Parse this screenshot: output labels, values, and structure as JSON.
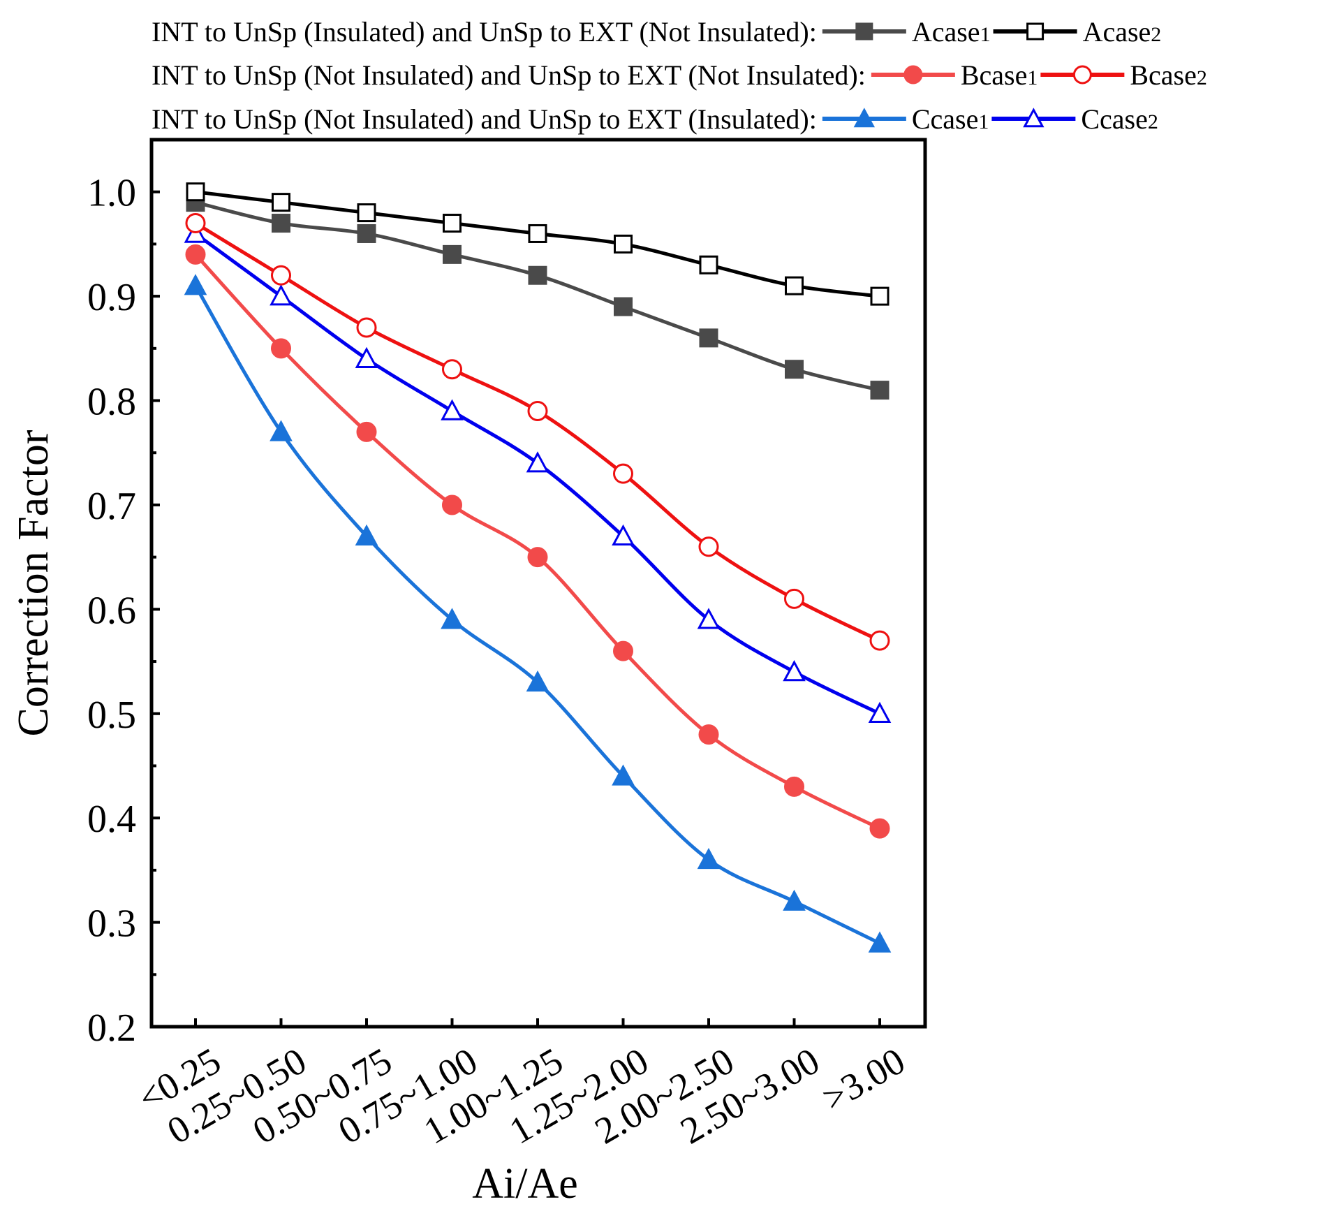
{
  "chart_data": {
    "type": "line",
    "title": "",
    "xlabel": "Ai/Ae",
    "ylabel": "Correction Factor",
    "ylim": [
      0.2,
      1.05
    ],
    "yticks": [
      "0.2",
      "0.3",
      "0.4",
      "0.5",
      "0.6",
      "0.7",
      "0.8",
      "0.9",
      "1.0"
    ],
    "categories": [
      "<0.25",
      "0.25~0.50",
      "0.50~0.75",
      "0.75~1.00",
      "1.00~1.25",
      "1.25~2.00",
      "2.00~2.50",
      "2.50~3.00",
      ">3.00"
    ],
    "legend_placement": "top",
    "legend_groups": [
      {
        "label": "INT to UnSp (Insulated) and UnSp to EXT (Not Insulated):",
        "series": [
          "Acase1",
          "Acase2"
        ]
      },
      {
        "label": "INT to UnSp (Not Insulated) and UnSp to EXT (Not Insulated):",
        "series": [
          "Bcase1",
          "Bcase2"
        ]
      },
      {
        "label": "INT to UnSp (Not Insulated) and UnSp to EXT (Insulated):",
        "series": [
          "Ccase1",
          "Ccase2"
        ]
      }
    ],
    "series": [
      {
        "name": "Acase1",
        "label_main": "Acase",
        "label_sub": "1",
        "color": "#4a4a4a",
        "marker": "square",
        "filled": true,
        "values": [
          0.99,
          0.97,
          0.96,
          0.94,
          0.92,
          0.89,
          0.86,
          0.83,
          0.81
        ]
      },
      {
        "name": "Acase2",
        "label_main": "Acase",
        "label_sub": "2",
        "color": "#000000",
        "marker": "square",
        "filled": false,
        "values": [
          1.0,
          0.99,
          0.98,
          0.97,
          0.96,
          0.95,
          0.93,
          0.91,
          0.9
        ]
      },
      {
        "name": "Bcase1",
        "label_main": "Bcase",
        "label_sub": "1",
        "color": "#f24a4a",
        "marker": "circle",
        "filled": true,
        "values": [
          0.94,
          0.85,
          0.77,
          0.7,
          0.65,
          0.56,
          0.48,
          0.43,
          0.39
        ]
      },
      {
        "name": "Bcase2",
        "label_main": "Bcase",
        "label_sub": "2",
        "color": "#ee1111",
        "marker": "circle",
        "filled": false,
        "values": [
          0.97,
          0.92,
          0.87,
          0.83,
          0.79,
          0.73,
          0.66,
          0.61,
          0.57
        ]
      },
      {
        "name": "Ccase1",
        "label_main": "Ccase",
        "label_sub": "1",
        "color": "#1a73d9",
        "marker": "triangle",
        "filled": true,
        "values": [
          0.91,
          0.77,
          0.67,
          0.59,
          0.53,
          0.44,
          0.36,
          0.32,
          0.28
        ]
      },
      {
        "name": "Ccase2",
        "label_main": "Ccase",
        "label_sub": "2",
        "color": "#0000ee",
        "marker": "triangle",
        "filled": false,
        "values": [
          0.96,
          0.9,
          0.84,
          0.79,
          0.74,
          0.67,
          0.59,
          0.54,
          0.5
        ]
      }
    ]
  }
}
